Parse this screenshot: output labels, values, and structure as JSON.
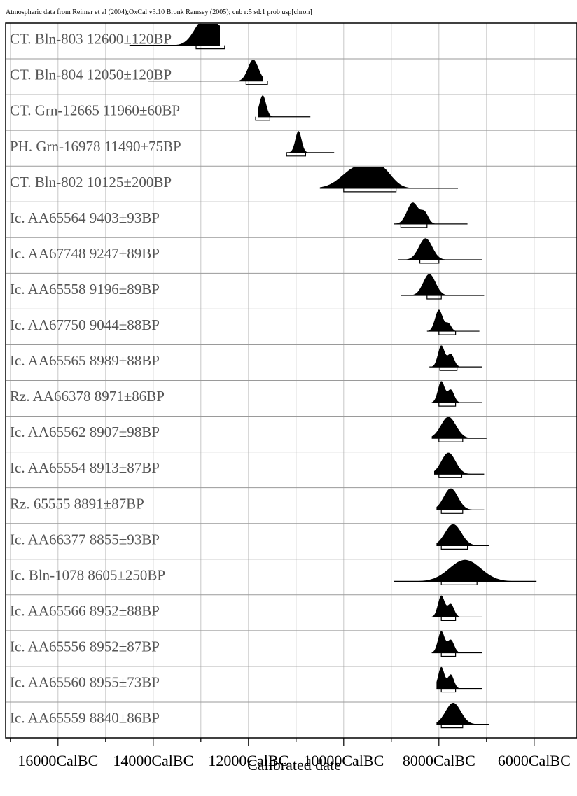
{
  "header": "Atmospheric data from Reimer et al (2004);OxCal v3.10 Bronk Ramsey (2005); cub r:5 sd:1 prob usp[chron]",
  "chart_data": {
    "type": "area",
    "title": "",
    "xlabel": "Calibrated date",
    "ylabel": "",
    "x_unit": "CalBC",
    "xlim": [
      17100,
      5100
    ],
    "x_ticks": [
      16000,
      14000,
      12000,
      10000,
      8000,
      6000
    ],
    "x_tick_labels": [
      "16000CalBC",
      "14000CalBC",
      "12000CalBC",
      "10000CalBC",
      "8000CalBC",
      "6000CalBC"
    ],
    "x_minor_step": 1000,
    "grid": true,
    "rows": [
      {
        "label": "CT. Bln-803  12600±120BP",
        "range": [
          14500,
          12600
        ],
        "hpd": [
          [
            13100,
            12500
          ]
        ],
        "peaks": [
          {
            "c": 12950,
            "w": 200,
            "h": 1.0
          },
          {
            "c": 12600,
            "w": 250,
            "h": 0.7
          }
        ]
      },
      {
        "label": "CT. Bln-804  12050±120BP",
        "range": [
          14100,
          11700
        ],
        "hpd": [
          [
            12050,
            11600
          ]
        ],
        "peaks": [
          {
            "c": 11900,
            "w": 110,
            "h": 1.0
          }
        ]
      },
      {
        "label": "CT. Grn-12665  11960±60BP",
        "range": [
          11800,
          10700
        ],
        "hpd": [
          [
            11850,
            11550
          ]
        ],
        "peaks": [
          {
            "c": 11700,
            "w": 70,
            "h": 1.0
          }
        ]
      },
      {
        "label": "PH. Grn-16978  11490±75BP",
        "range": [
          11200,
          10200
        ],
        "hpd": [
          [
            11200,
            10800
          ]
        ],
        "peaks": [
          {
            "c": 10950,
            "w": 65,
            "h": 1.0
          }
        ]
      },
      {
        "label": "CT. Bln-802  10125±200BP",
        "range": [
          10500,
          7600
        ],
        "hpd": [
          [
            10000,
            8900
          ]
        ],
        "peaks": [
          {
            "c": 9700,
            "w": 320,
            "h": 1.0
          },
          {
            "c": 9200,
            "w": 220,
            "h": 0.75
          }
        ]
      },
      {
        "label": "Ic. AA65564  9403±93BP",
        "range": [
          8950,
          7400
        ],
        "hpd": [
          [
            8800,
            8250
          ]
        ],
        "peaks": [
          {
            "c": 8550,
            "w": 120,
            "h": 1.0
          },
          {
            "c": 8300,
            "w": 80,
            "h": 0.5
          }
        ]
      },
      {
        "label": "Ic. AA67748  9247±89BP",
        "range": [
          8850,
          7100
        ],
        "hpd": [
          [
            8400,
            8000
          ]
        ],
        "peaks": [
          {
            "c": 8280,
            "w": 140,
            "h": 1.0
          }
        ]
      },
      {
        "label": "Ic. AA65558  9196±89BP",
        "range": [
          8800,
          7050
        ],
        "hpd": [
          [
            8250,
            7950
          ]
        ],
        "peaks": [
          {
            "c": 8200,
            "w": 130,
            "h": 1.0
          }
        ]
      },
      {
        "label": "Ic. AA67750  9044±88BP",
        "range": [
          8250,
          7150
        ],
        "hpd": [
          [
            8000,
            7650
          ]
        ],
        "peaks": [
          {
            "c": 8000,
            "w": 80,
            "h": 1.0
          },
          {
            "c": 7800,
            "w": 60,
            "h": 0.35
          }
        ]
      },
      {
        "label": "Ic. AA65565  8989±88BP",
        "range": [
          8200,
          7100
        ],
        "hpd": [
          [
            7980,
            7620
          ]
        ],
        "peaks": [
          {
            "c": 7950,
            "w": 70,
            "h": 1.0
          },
          {
            "c": 7750,
            "w": 70,
            "h": 0.6
          }
        ]
      },
      {
        "label": "Rz. AA66378  8971±86BP",
        "range": [
          8150,
          7100
        ],
        "hpd": [
          [
            8000,
            7650
          ]
        ],
        "peaks": [
          {
            "c": 7950,
            "w": 70,
            "h": 1.0
          },
          {
            "c": 7750,
            "w": 70,
            "h": 0.6
          }
        ]
      },
      {
        "label": "Ic. AA65562  8907±98BP",
        "range": [
          8150,
          7000
        ],
        "hpd": [
          [
            8000,
            7500
          ]
        ],
        "peaks": [
          {
            "c": 7800,
            "w": 160,
            "h": 1.0
          }
        ]
      },
      {
        "label": "Ic. AA65554  8913±87BP",
        "range": [
          8100,
          7050
        ],
        "hpd": [
          [
            8000,
            7520
          ]
        ],
        "peaks": [
          {
            "c": 7800,
            "w": 150,
            "h": 1.0
          }
        ]
      },
      {
        "label": "Rz. 65555  8891±87BP",
        "range": [
          8050,
          7050
        ],
        "hpd": [
          [
            7950,
            7500
          ]
        ],
        "peaks": [
          {
            "c": 7750,
            "w": 150,
            "h": 1.0
          }
        ]
      },
      {
        "label": "Ic. AA66377  8855±93BP",
        "range": [
          8050,
          6950
        ],
        "hpd": [
          [
            7950,
            7400
          ]
        ],
        "peaks": [
          {
            "c": 7700,
            "w": 170,
            "h": 1.0
          }
        ]
      },
      {
        "label": "Ic. Bln-1078  8605±250BP",
        "range": [
          8950,
          5950
        ],
        "hpd": [
          [
            7950,
            7200
          ]
        ],
        "peaks": [
          {
            "c": 7450,
            "w": 330,
            "h": 1.0
          }
        ]
      },
      {
        "label": "Ic. AA65566  8952±88BP",
        "range": [
          8150,
          7100
        ],
        "hpd": [
          [
            7950,
            7650
          ]
        ],
        "peaks": [
          {
            "c": 7950,
            "w": 70,
            "h": 1.0
          },
          {
            "c": 7750,
            "w": 70,
            "h": 0.6
          }
        ]
      },
      {
        "label": "Ic. AA65556  8952±87BP",
        "range": [
          8150,
          7100
        ],
        "hpd": [
          [
            7950,
            7650
          ]
        ],
        "peaks": [
          {
            "c": 7950,
            "w": 70,
            "h": 1.0
          },
          {
            "c": 7750,
            "w": 70,
            "h": 0.6
          }
        ]
      },
      {
        "label": "Ic. AA65560  8955±73BP",
        "range": [
          8050,
          7100
        ],
        "hpd": [
          [
            7950,
            7650
          ]
        ],
        "peaks": [
          {
            "c": 7950,
            "w": 65,
            "h": 1.0
          },
          {
            "c": 7750,
            "w": 65,
            "h": 0.65
          }
        ]
      },
      {
        "label": "Ic. AA65559  8840±86BP",
        "range": [
          8050,
          6950
        ],
        "hpd": [
          [
            7950,
            7500
          ]
        ],
        "peaks": [
          {
            "c": 7700,
            "w": 160,
            "h": 1.0
          }
        ]
      }
    ]
  }
}
